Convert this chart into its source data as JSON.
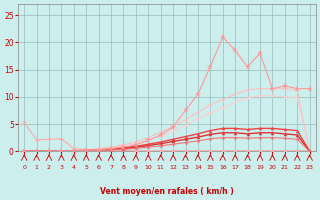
{
  "x": [
    0,
    1,
    2,
    3,
    4,
    5,
    6,
    7,
    8,
    9,
    10,
    11,
    12,
    13,
    14,
    15,
    16,
    17,
    18,
    19,
    20,
    21,
    22,
    23
  ],
  "background_color": "#cceeed",
  "grid_color": "#99bbbb",
  "xlabel": "Vent moyen/en rafales ( km/h )",
  "xlabel_color": "#cc0000",
  "tick_color": "#cc0000",
  "arrow_color": "#cc0000",
  "series": [
    {
      "label": "pink_top",
      "y": [
        5.3,
        2.1,
        2.2,
        2.3,
        0.5,
        0.3,
        0.3,
        0.2,
        0.15,
        0.1,
        0.1,
        0.1,
        0.1,
        0.1,
        0.1,
        0.1,
        0.1,
        0.1,
        0.1,
        0.1,
        0.1,
        0.1,
        0.1,
        0.1
      ],
      "color": "#ffaaaa",
      "marker": "D",
      "markersize": 2.0,
      "linewidth": 0.8
    },
    {
      "label": "fan_upper",
      "y": [
        0.0,
        0.0,
        0.0,
        0.1,
        0.2,
        0.3,
        0.5,
        0.8,
        1.2,
        1.7,
        2.5,
        3.5,
        4.5,
        5.8,
        7.2,
        8.5,
        9.5,
        10.5,
        11.2,
        11.5,
        11.5,
        11.5,
        11.2,
        0.0
      ],
      "color": "#ffbbbb",
      "marker": "D",
      "markersize": 1.5,
      "linewidth": 0.7
    },
    {
      "label": "fan_lower",
      "y": [
        0.0,
        0.0,
        0.0,
        0.08,
        0.15,
        0.25,
        0.4,
        0.65,
        1.0,
        1.4,
        2.0,
        2.8,
        3.7,
        4.8,
        6.0,
        7.0,
        8.0,
        9.0,
        9.8,
        10.2,
        10.2,
        10.0,
        9.8,
        0.0
      ],
      "color": "#ffcccc",
      "marker": "D",
      "markersize": 1.5,
      "linewidth": 0.7
    },
    {
      "label": "red_upper",
      "y": [
        0.0,
        0.0,
        0.0,
        0.05,
        0.1,
        0.15,
        0.25,
        0.4,
        0.6,
        0.9,
        1.3,
        1.7,
        2.2,
        2.7,
        3.2,
        3.8,
        4.2,
        4.2,
        4.0,
        4.2,
        4.2,
        4.0,
        3.8,
        0.0
      ],
      "color": "#ee4444",
      "marker": "^",
      "markersize": 2.5,
      "linewidth": 1.0
    },
    {
      "label": "red_mid",
      "y": [
        0.0,
        0.0,
        0.0,
        0.04,
        0.08,
        0.12,
        0.2,
        0.32,
        0.5,
        0.72,
        1.05,
        1.4,
        1.8,
        2.2,
        2.6,
        3.1,
        3.4,
        3.4,
        3.2,
        3.4,
        3.4,
        3.2,
        3.0,
        0.0
      ],
      "color": "#dd3333",
      "marker": "^",
      "markersize": 2.5,
      "linewidth": 1.0
    },
    {
      "label": "pink_lower_line",
      "y": [
        0.0,
        0.0,
        0.0,
        0.03,
        0.06,
        0.09,
        0.14,
        0.22,
        0.36,
        0.52,
        0.75,
        1.0,
        1.3,
        1.6,
        1.9,
        2.3,
        2.5,
        2.5,
        2.4,
        2.5,
        2.5,
        2.4,
        2.2,
        0.0
      ],
      "color": "#ee7777",
      "marker": "D",
      "markersize": 1.8,
      "linewidth": 0.8
    },
    {
      "label": "star_peak",
      "y": [
        0.0,
        0.0,
        0.0,
        0.05,
        0.1,
        0.2,
        0.3,
        0.5,
        0.8,
        1.2,
        2.0,
        3.0,
        4.5,
        7.5,
        10.5,
        15.5,
        21.0,
        18.5,
        15.5,
        18.0,
        11.5,
        12.0,
        11.5,
        11.5
      ],
      "color": "#ff9999",
      "marker": "*",
      "markersize": 4.5,
      "linewidth": 0.8
    }
  ],
  "ylim": [
    0,
    27
  ],
  "yticks": [
    0,
    5,
    10,
    15,
    20,
    25
  ],
  "xlim": [
    -0.5,
    23.5
  ],
  "xticks": [
    0,
    1,
    2,
    3,
    4,
    5,
    6,
    7,
    8,
    9,
    10,
    11,
    12,
    13,
    14,
    15,
    16,
    17,
    18,
    19,
    20,
    21,
    22,
    23
  ]
}
